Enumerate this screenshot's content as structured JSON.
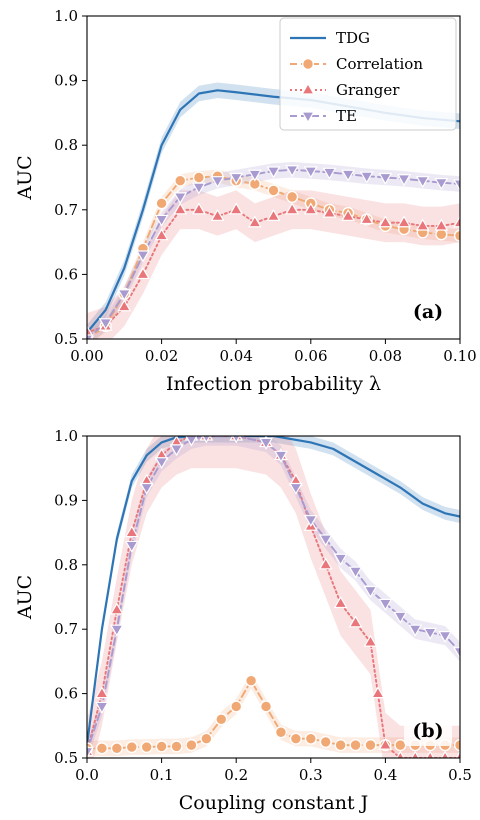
{
  "chart_data": [
    {
      "type": "line",
      "panel_label": "(a)",
      "xlabel": "Infection probability λ",
      "ylabel": "AUC",
      "xlim": [
        0,
        0.1
      ],
      "ylim": [
        0.5,
        1.0
      ],
      "xticks": [
        "0.00",
        "0.02",
        "0.04",
        "0.06",
        "0.08",
        "0.10"
      ],
      "yticks": [
        "0.5",
        "0.6",
        "0.7",
        "0.8",
        "0.9",
        "1.0"
      ],
      "legend": {
        "position": "top-right",
        "entries": [
          "TDG",
          "Correlation",
          "Granger",
          "TE"
        ]
      },
      "series": [
        {
          "name": "TDG",
          "color": "#2e75b6",
          "style": "solid",
          "marker": "none",
          "x": [
            0.0,
            0.005,
            0.01,
            0.015,
            0.02,
            0.025,
            0.03,
            0.035,
            0.04,
            0.05,
            0.06,
            0.07,
            0.08,
            0.09,
            0.1
          ],
          "y": [
            0.51,
            0.545,
            0.61,
            0.7,
            0.8,
            0.855,
            0.88,
            0.885,
            0.882,
            0.875,
            0.87,
            0.86,
            0.85,
            0.842,
            0.837
          ],
          "band": 0.012
        },
        {
          "name": "Correlation",
          "color": "#f0a975",
          "style": "dashed",
          "marker": "circle",
          "x": [
            0.0,
            0.005,
            0.01,
            0.015,
            0.02,
            0.025,
            0.03,
            0.035,
            0.04,
            0.045,
            0.05,
            0.055,
            0.06,
            0.065,
            0.07,
            0.075,
            0.08,
            0.085,
            0.09,
            0.095,
            0.1
          ],
          "y": [
            0.5,
            0.52,
            0.57,
            0.64,
            0.71,
            0.745,
            0.75,
            0.752,
            0.745,
            0.74,
            0.73,
            0.72,
            0.71,
            0.7,
            0.695,
            0.685,
            0.675,
            0.67,
            0.665,
            0.662,
            0.66
          ],
          "band": 0.01
        },
        {
          "name": "Granger",
          "color": "#e8767a",
          "style": "dotted",
          "marker": "triangle-up",
          "x": [
            0.0,
            0.005,
            0.01,
            0.015,
            0.02,
            0.025,
            0.03,
            0.035,
            0.04,
            0.045,
            0.05,
            0.055,
            0.06,
            0.065,
            0.07,
            0.075,
            0.08,
            0.085,
            0.09,
            0.095,
            0.1
          ],
          "y": [
            0.51,
            0.52,
            0.55,
            0.6,
            0.66,
            0.7,
            0.7,
            0.69,
            0.7,
            0.68,
            0.69,
            0.7,
            0.7,
            0.695,
            0.69,
            0.685,
            0.68,
            0.68,
            0.675,
            0.675,
            0.68
          ],
          "band": 0.03
        },
        {
          "name": "TE",
          "color": "#a99bd0",
          "style": "dashed",
          "marker": "triangle-down",
          "x": [
            0.0,
            0.005,
            0.01,
            0.015,
            0.02,
            0.025,
            0.03,
            0.035,
            0.04,
            0.045,
            0.05,
            0.055,
            0.06,
            0.065,
            0.07,
            0.075,
            0.08,
            0.085,
            0.09,
            0.095,
            0.1
          ],
          "y": [
            0.5,
            0.525,
            0.57,
            0.63,
            0.685,
            0.72,
            0.735,
            0.745,
            0.75,
            0.755,
            0.76,
            0.762,
            0.76,
            0.758,
            0.755,
            0.752,
            0.75,
            0.748,
            0.745,
            0.742,
            0.74
          ],
          "band": 0.012
        }
      ]
    },
    {
      "type": "line",
      "panel_label": "(b)",
      "xlabel": "Coupling constant J",
      "ylabel": "AUC",
      "xlim": [
        0,
        0.5
      ],
      "ylim": [
        0.5,
        1.0
      ],
      "xticks": [
        "0.0",
        "0.1",
        "0.2",
        "0.3",
        "0.4",
        "0.5"
      ],
      "yticks": [
        "0.5",
        "0.6",
        "0.7",
        "0.8",
        "0.9",
        "1.0"
      ],
      "series": [
        {
          "name": "TDG",
          "color": "#2e75b6",
          "style": "solid",
          "marker": "none",
          "x": [
            0.0,
            0.02,
            0.04,
            0.06,
            0.08,
            0.1,
            0.12,
            0.15,
            0.2,
            0.25,
            0.3,
            0.33,
            0.36,
            0.39,
            0.42,
            0.45,
            0.48,
            0.5
          ],
          "y": [
            0.52,
            0.7,
            0.84,
            0.93,
            0.97,
            0.99,
            0.998,
            1.0,
            1.0,
            1.0,
            0.99,
            0.98,
            0.96,
            0.94,
            0.92,
            0.895,
            0.88,
            0.875
          ],
          "band": 0.01
        },
        {
          "name": "Correlation",
          "color": "#f0a975",
          "style": "dashed",
          "marker": "circle",
          "x": [
            0.0,
            0.02,
            0.04,
            0.06,
            0.08,
            0.1,
            0.12,
            0.14,
            0.16,
            0.18,
            0.2,
            0.22,
            0.24,
            0.26,
            0.28,
            0.3,
            0.32,
            0.34,
            0.36,
            0.38,
            0.4,
            0.42,
            0.44,
            0.46,
            0.48,
            0.5
          ],
          "y": [
            0.515,
            0.515,
            0.515,
            0.517,
            0.517,
            0.518,
            0.518,
            0.52,
            0.53,
            0.56,
            0.58,
            0.62,
            0.58,
            0.54,
            0.53,
            0.53,
            0.525,
            0.52,
            0.52,
            0.52,
            0.52,
            0.52,
            0.52,
            0.52,
            0.52,
            0.52
          ],
          "band": 0.012
        },
        {
          "name": "Granger",
          "color": "#e8767a",
          "style": "dotted",
          "marker": "triangle-up",
          "x": [
            0.0,
            0.02,
            0.04,
            0.06,
            0.08,
            0.1,
            0.12,
            0.14,
            0.16,
            0.2,
            0.24,
            0.26,
            0.28,
            0.3,
            0.32,
            0.34,
            0.36,
            0.38,
            0.39,
            0.4,
            0.42,
            0.44,
            0.46,
            0.48,
            0.5
          ],
          "y": [
            0.51,
            0.6,
            0.73,
            0.85,
            0.93,
            0.97,
            0.99,
            1.0,
            1.0,
            1.0,
            0.99,
            0.97,
            0.93,
            0.86,
            0.8,
            0.74,
            0.71,
            0.68,
            0.6,
            0.52,
            0.5,
            0.5,
            0.5,
            0.5,
            0.5
          ],
          "band": 0.05
        },
        {
          "name": "TE",
          "color": "#a99bd0",
          "style": "dashed",
          "marker": "triangle-down",
          "x": [
            0.0,
            0.02,
            0.04,
            0.06,
            0.08,
            0.1,
            0.12,
            0.14,
            0.16,
            0.2,
            0.24,
            0.26,
            0.28,
            0.3,
            0.32,
            0.34,
            0.36,
            0.38,
            0.4,
            0.42,
            0.44,
            0.46,
            0.48,
            0.5
          ],
          "y": [
            0.51,
            0.58,
            0.7,
            0.83,
            0.92,
            0.96,
            0.98,
            0.995,
            1.0,
            1.0,
            0.99,
            0.97,
            0.92,
            0.87,
            0.84,
            0.81,
            0.79,
            0.76,
            0.74,
            0.72,
            0.7,
            0.695,
            0.69,
            0.665
          ],
          "band": 0.015
        }
      ]
    }
  ]
}
